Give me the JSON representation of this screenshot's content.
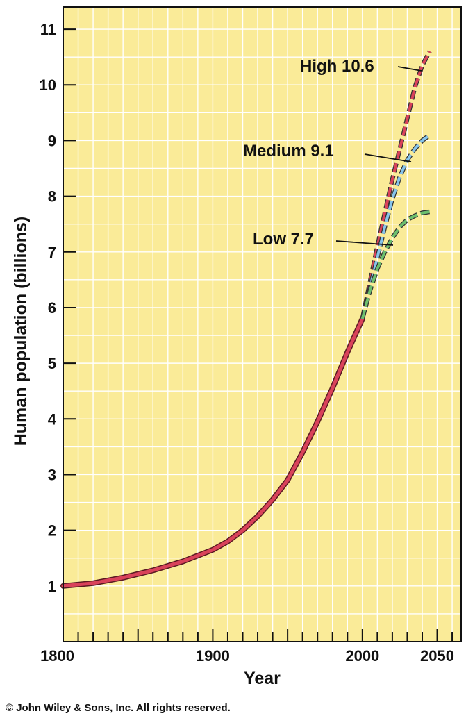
{
  "chart_data": {
    "type": "line",
    "xlabel": "Year",
    "ylabel": "Human population (billions)",
    "xlim": [
      1800,
      2066
    ],
    "ylim": [
      0,
      11.4
    ],
    "x_ticks": [
      1800,
      1900,
      2000,
      2050
    ],
    "y_ticks": [
      1,
      2,
      3,
      4,
      5,
      6,
      7,
      8,
      9,
      10,
      11
    ],
    "grid": true,
    "background_color": "#faeb98",
    "grid_color": "#ffffff",
    "series": [
      {
        "style": "solid",
        "color": "#d9425a",
        "points": [
          [
            1800,
            1.0
          ],
          [
            1820,
            1.05
          ],
          [
            1840,
            1.15
          ],
          [
            1860,
            1.28
          ],
          [
            1880,
            1.44
          ],
          [
            1900,
            1.65
          ],
          [
            1910,
            1.8
          ],
          [
            1920,
            2.0
          ],
          [
            1930,
            2.25
          ],
          [
            1940,
            2.55
          ],
          [
            1950,
            2.9
          ],
          [
            1960,
            3.4
          ],
          [
            1970,
            3.95
          ],
          [
            1980,
            4.55
          ],
          [
            1990,
            5.2
          ],
          [
            2000,
            5.8
          ]
        ]
      },
      {
        "name": "High",
        "style": "dashed",
        "color": "#d9425a",
        "points": [
          [
            2000,
            5.8
          ],
          [
            2005,
            6.45
          ],
          [
            2010,
            7.1
          ],
          [
            2015,
            7.7
          ],
          [
            2020,
            8.3
          ],
          [
            2025,
            8.85
          ],
          [
            2030,
            9.4
          ],
          [
            2035,
            9.95
          ],
          [
            2040,
            10.35
          ],
          [
            2045,
            10.6
          ]
        ]
      },
      {
        "name": "Medium",
        "style": "dashed",
        "color": "#86c4ec",
        "points": [
          [
            2000,
            5.8
          ],
          [
            2005,
            6.35
          ],
          [
            2010,
            6.9
          ],
          [
            2015,
            7.45
          ],
          [
            2020,
            7.95
          ],
          [
            2025,
            8.35
          ],
          [
            2030,
            8.65
          ],
          [
            2035,
            8.85
          ],
          [
            2040,
            9.0
          ],
          [
            2045,
            9.1
          ]
        ]
      },
      {
        "name": "Low",
        "style": "dashed",
        "color": "#6cbf6e",
        "points": [
          [
            2000,
            5.8
          ],
          [
            2005,
            6.3
          ],
          [
            2010,
            6.7
          ],
          [
            2015,
            7.0
          ],
          [
            2020,
            7.25
          ],
          [
            2025,
            7.45
          ],
          [
            2030,
            7.58
          ],
          [
            2035,
            7.65
          ],
          [
            2040,
            7.7
          ],
          [
            2045,
            7.72
          ]
        ]
      }
    ],
    "annotations": [
      {
        "text": "High 10.6",
        "x": 2045,
        "y": 10.6
      },
      {
        "text": "Medium 9.1",
        "x": 2045,
        "y": 9.1
      },
      {
        "text": "Low 7.7",
        "x": 2045,
        "y": 7.7
      }
    ]
  },
  "copyright": "© John Wiley & Sons, Inc. All rights reserved."
}
